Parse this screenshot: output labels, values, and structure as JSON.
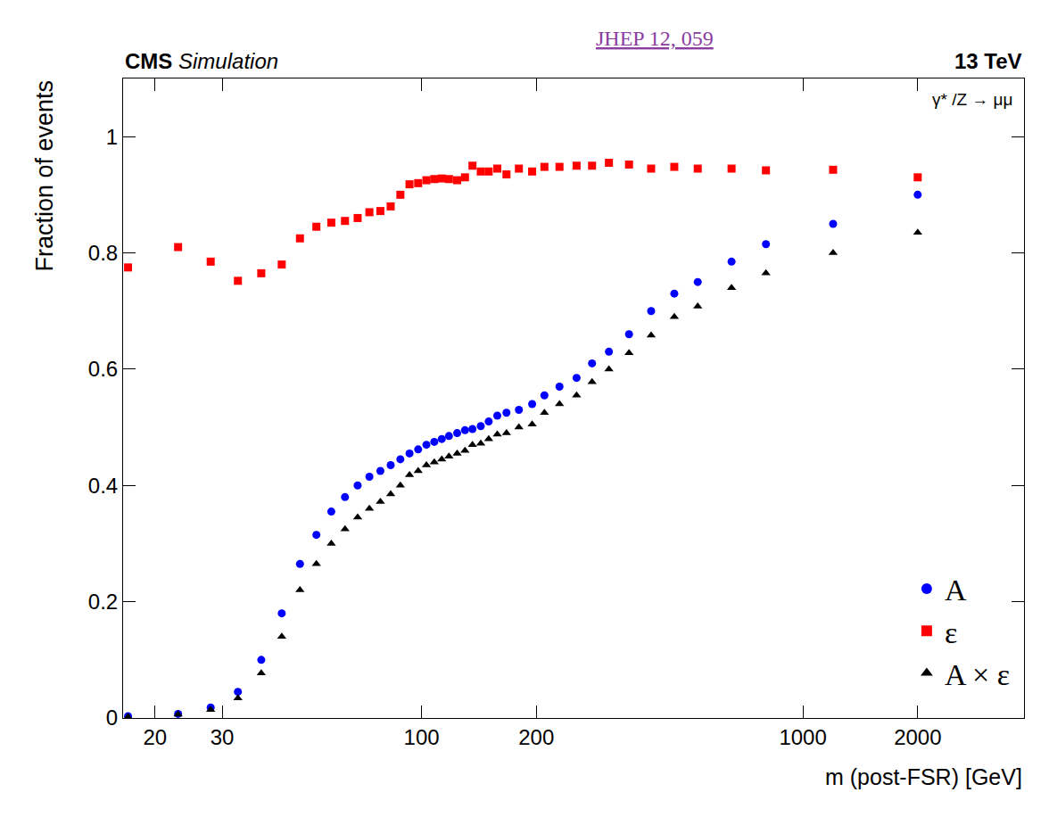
{
  "chart_data": {
    "type": "scatter",
    "texts": {
      "cms": "CMS",
      "simulation": "Simulation",
      "reference": "JHEP 12, 059",
      "energy": "13 TeV",
      "process": "γ* /Z → μμ"
    },
    "x_label": "m (post-FSR) [GeV]",
    "y_label": "Fraction of events",
    "log": "x",
    "grid": false,
    "legend": "lower right",
    "xlim": [
      16.5,
      3800
    ],
    "xticks": [
      20,
      30,
      100,
      200,
      1000,
      2000
    ],
    "ylim": [
      0,
      1.1
    ],
    "yticks": [
      0,
      0.2,
      0.4,
      0.6,
      0.8,
      1
    ],
    "x": [
      17,
      23,
      28,
      33,
      38,
      43,
      48,
      53,
      58,
      63,
      68,
      73,
      78,
      83,
      88,
      93,
      98,
      103,
      108,
      113,
      118,
      124,
      130,
      136,
      143,
      150,
      158,
      167,
      180,
      195,
      210,
      230,
      255,
      280,
      310,
      350,
      400,
      460,
      530,
      650,
      800,
      1200,
      2000
    ],
    "series": [
      {
        "name": "A",
        "color": "#0000ff",
        "marker": "circle",
        "values": [
          0.003,
          0.007,
          0.018,
          0.045,
          0.1,
          0.18,
          0.265,
          0.315,
          0.355,
          0.38,
          0.4,
          0.415,
          0.425,
          0.435,
          0.445,
          0.455,
          0.462,
          0.47,
          0.475,
          0.48,
          0.485,
          0.49,
          0.495,
          0.497,
          0.502,
          0.51,
          0.52,
          0.525,
          0.53,
          0.54,
          0.555,
          0.57,
          0.585,
          0.61,
          0.63,
          0.66,
          0.7,
          0.73,
          0.75,
          0.785,
          0.815,
          0.85,
          0.9
        ]
      },
      {
        "name": "ε",
        "color": "#ff0000",
        "marker": "square",
        "values": [
          0.775,
          0.81,
          0.785,
          0.752,
          0.765,
          0.78,
          0.825,
          0.845,
          0.852,
          0.855,
          0.86,
          0.87,
          0.872,
          0.88,
          0.9,
          0.918,
          0.92,
          0.925,
          0.927,
          0.928,
          0.927,
          0.925,
          0.93,
          0.95,
          0.94,
          0.94,
          0.945,
          0.935,
          0.945,
          0.94,
          0.948,
          0.948,
          0.95,
          0.95,
          0.955,
          0.952,
          0.945,
          0.948,
          0.945,
          0.945,
          0.942,
          0.943,
          0.93
        ]
      },
      {
        "name": "A × ε",
        "color": "#000000",
        "marker": "triangle-up",
        "values": [
          0.002,
          0.006,
          0.014,
          0.034,
          0.077,
          0.14,
          0.22,
          0.265,
          0.3,
          0.325,
          0.345,
          0.36,
          0.372,
          0.385,
          0.4,
          0.418,
          0.425,
          0.435,
          0.44,
          0.445,
          0.45,
          0.455,
          0.46,
          0.47,
          0.472,
          0.48,
          0.488,
          0.49,
          0.5,
          0.505,
          0.525,
          0.54,
          0.555,
          0.578,
          0.6,
          0.628,
          0.658,
          0.69,
          0.708,
          0.74,
          0.765,
          0.8,
          0.835
        ]
      }
    ]
  }
}
